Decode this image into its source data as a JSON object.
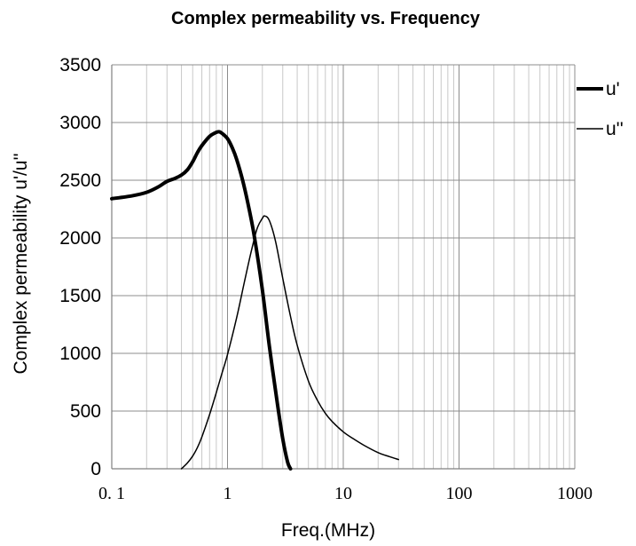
{
  "chart_data": {
    "type": "line",
    "title": "Complex permeability vs. Frequency",
    "xlabel": "Freq.(MHz)",
    "ylabel": "Complex permeability u'/u''",
    "xscale": "log",
    "xlim": [
      0.1,
      1000
    ],
    "ylim": [
      0,
      3500
    ],
    "x_ticks": [
      0.1,
      1,
      10,
      100,
      1000
    ],
    "x_tick_labels": [
      "0. 1",
      "1",
      "10",
      "100",
      "1000"
    ],
    "y_ticks": [
      0,
      500,
      1000,
      1500,
      2000,
      2500,
      3000,
      3500
    ],
    "y_tick_labels": [
      "0",
      "500",
      "1000",
      "1500",
      "2000",
      "2500",
      "3000",
      "3500"
    ],
    "grid": true,
    "legend_position": "top-right",
    "series": [
      {
        "name": "u'",
        "style": "thick",
        "color": "#000000",
        "x": [
          0.1,
          0.15,
          0.2,
          0.25,
          0.3,
          0.35,
          0.4,
          0.45,
          0.5,
          0.55,
          0.6,
          0.7,
          0.8,
          0.85,
          0.9,
          1.0,
          1.1,
          1.2,
          1.35,
          1.5,
          1.7,
          2.0,
          2.3,
          2.7,
          3.0,
          3.3,
          3.5
        ],
        "values": [
          2340,
          2365,
          2395,
          2440,
          2490,
          2515,
          2545,
          2590,
          2660,
          2740,
          2800,
          2880,
          2915,
          2920,
          2905,
          2860,
          2780,
          2680,
          2500,
          2300,
          2020,
          1550,
          1060,
          560,
          260,
          60,
          0
        ]
      },
      {
        "name": "u''",
        "style": "thin",
        "color": "#000000",
        "x": [
          0.4,
          0.45,
          0.5,
          0.55,
          0.6,
          0.7,
          0.8,
          0.9,
          1.0,
          1.2,
          1.4,
          1.6,
          1.8,
          2.0,
          2.1,
          2.3,
          2.6,
          3.0,
          3.5,
          4.0,
          5.0,
          6.0,
          7.0,
          8.0,
          10,
          12,
          15,
          20,
          25,
          30
        ],
        "values": [
          0,
          50,
          110,
          185,
          275,
          470,
          660,
          835,
          990,
          1310,
          1620,
          1880,
          2080,
          2170,
          2190,
          2150,
          1970,
          1650,
          1320,
          1070,
          760,
          590,
          480,
          410,
          320,
          265,
          205,
          140,
          105,
          80
        ]
      }
    ]
  }
}
